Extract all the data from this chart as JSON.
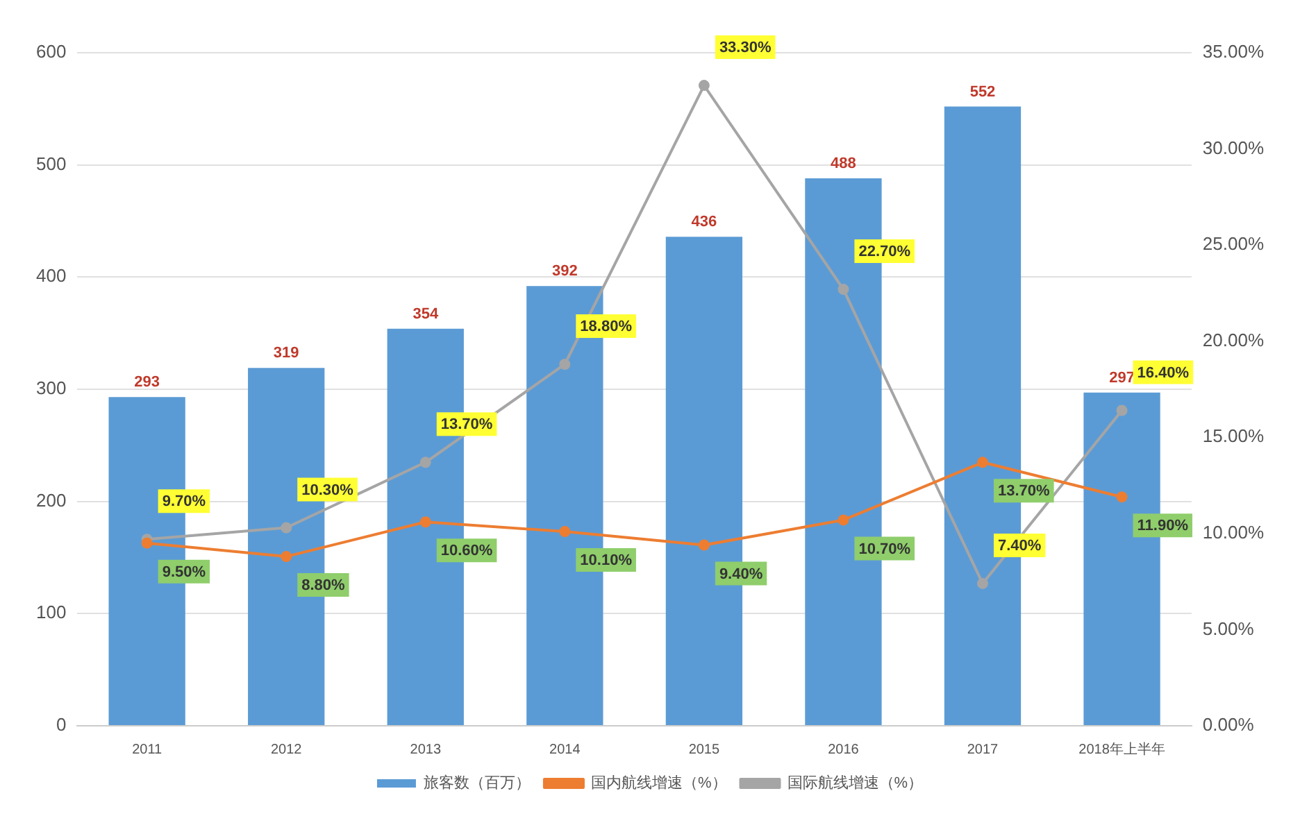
{
  "chart_data": {
    "type": "bar",
    "categories": [
      "2011",
      "2012",
      "2013",
      "2014",
      "2015",
      "2016",
      "2017",
      "2018年上半年"
    ],
    "series": [
      {
        "name": "旅客数（百万）",
        "color": "#5b9bd5",
        "values": [
          293,
          319,
          354,
          392,
          436,
          488,
          552,
          297
        ],
        "value_labels": [
          "293",
          "319",
          "354",
          "392",
          "436",
          "488",
          "552",
          "297"
        ]
      },
      {
        "name": "国内航线增速（%）",
        "type": "line",
        "axis": "y2",
        "color": "#ed7d31",
        "values": [
          9.5,
          8.8,
          10.6,
          10.1,
          9.4,
          10.7,
          13.7,
          11.9
        ],
        "value_labels": [
          "9.50%",
          "8.80%",
          "10.60%",
          "10.10%",
          "9.40%",
          "10.70%",
          "13.70%",
          "11.90%"
        ]
      },
      {
        "name": "国际航线增速（%）",
        "type": "line",
        "axis": "y2",
        "color": "#a5a5a5",
        "values": [
          9.7,
          10.3,
          13.7,
          18.8,
          33.3,
          22.7,
          7.4,
          16.4
        ],
        "value_labels": [
          "9.70%",
          "10.30%",
          "13.70%",
          "18.80%",
          "33.30%",
          "22.70%",
          "7.40%",
          "16.40%"
        ]
      }
    ],
    "ylim": [
      0,
      600
    ],
    "yticks": [
      0,
      100,
      200,
      300,
      400,
      500,
      600
    ],
    "y2lim": [
      0,
      35
    ],
    "y2ticks": [
      {
        "value": 0,
        "label": "0.00%"
      },
      {
        "value": 5,
        "label": "5.00%"
      },
      {
        "value": 10,
        "label": "10.00%"
      },
      {
        "value": 15,
        "label": "15.00%"
      },
      {
        "value": 20,
        "label": "20.00%"
      },
      {
        "value": 25,
        "label": "25.00%"
      },
      {
        "value": 30,
        "label": "30.00%"
      },
      {
        "value": 35,
        "label": "35.00%"
      }
    ],
    "grid": "y",
    "legend": "bottom",
    "marker": "circle"
  }
}
